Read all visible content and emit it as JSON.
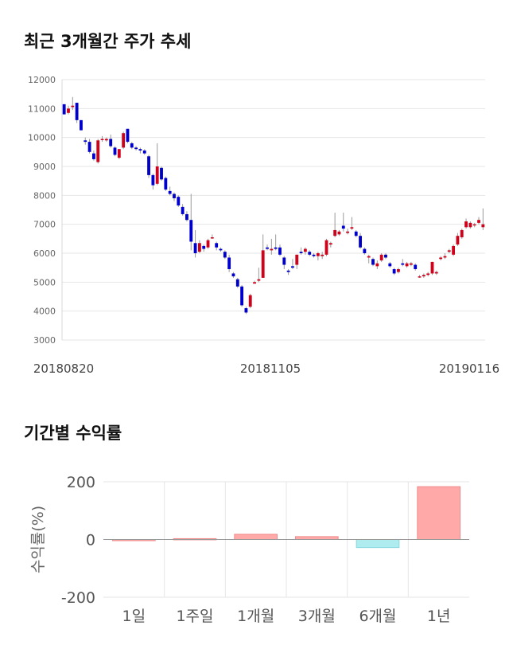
{
  "sections": {
    "price_title": "최근 3개월간 주가 추세",
    "returns_title": "기간별 수익률"
  },
  "chart_data": [
    {
      "type": "candlestick",
      "ylim": [
        3000,
        12000
      ],
      "yticks": [
        "12000",
        "11000",
        "10000",
        "9000",
        "8000",
        "7000",
        "6000",
        "5000",
        "4000",
        "3000"
      ],
      "xticks": [
        "20180820",
        "20181105",
        "20190116"
      ],
      "grid": true,
      "colors": {
        "up": "#d0021b",
        "down": "#0000cc"
      },
      "ohlc": [
        [
          11150,
          11150,
          10800,
          10800
        ],
        [
          10850,
          11100,
          10800,
          11000
        ],
        [
          11050,
          11400,
          10950,
          11100
        ],
        [
          11200,
          11200,
          10500,
          10600
        ],
        [
          10600,
          10600,
          10250,
          10250
        ],
        [
          9900,
          10000,
          9750,
          9850
        ],
        [
          9850,
          9950,
          9450,
          9500
        ],
        [
          9450,
          9550,
          9200,
          9250
        ],
        [
          9150,
          9950,
          9100,
          9900
        ],
        [
          9950,
          10050,
          9850,
          9950
        ],
        [
          9900,
          10000,
          9850,
          9950
        ],
        [
          9950,
          10100,
          9650,
          9700
        ],
        [
          9650,
          9700,
          9350,
          9400
        ],
        [
          9300,
          9600,
          9250,
          9600
        ],
        [
          9650,
          10200,
          9600,
          10150
        ],
        [
          10300,
          10300,
          9800,
          9850
        ],
        [
          9800,
          9850,
          9600,
          9650
        ],
        [
          9650,
          9700,
          9550,
          9600
        ],
        [
          9600,
          9650,
          9450,
          9550
        ],
        [
          9550,
          9600,
          9400,
          9450
        ],
        [
          9350,
          9400,
          8600,
          8700
        ],
        [
          8700,
          8750,
          8200,
          8350
        ],
        [
          8400,
          9800,
          8350,
          9000
        ],
        [
          8950,
          9000,
          8500,
          8550
        ],
        [
          8600,
          8650,
          8150,
          8200
        ],
        [
          8150,
          8300,
          8000,
          8050
        ],
        [
          8050,
          8100,
          7800,
          7900
        ],
        [
          7950,
          8000,
          7600,
          7650
        ],
        [
          7600,
          7700,
          7300,
          7350
        ],
        [
          7350,
          7450,
          7100,
          7150
        ],
        [
          7150,
          8050,
          6100,
          6400
        ],
        [
          6350,
          6800,
          5850,
          6000
        ],
        [
          6050,
          6450,
          6000,
          6350
        ],
        [
          6250,
          6300,
          6050,
          6150
        ],
        [
          6200,
          6500,
          6150,
          6450
        ],
        [
          6550,
          6650,
          6500,
          6550
        ],
        [
          6350,
          6400,
          6100,
          6200
        ],
        [
          6150,
          6200,
          6050,
          6100
        ],
        [
          6050,
          6100,
          5800,
          5850
        ],
        [
          5850,
          5950,
          5350,
          5450
        ],
        [
          5300,
          5350,
          5150,
          5200
        ],
        [
          5100,
          5150,
          4800,
          4850
        ],
        [
          4850,
          4900,
          4150,
          4200
        ],
        [
          4100,
          4150,
          3900,
          3950
        ],
        [
          4150,
          4600,
          4100,
          4550
        ],
        [
          4950,
          5050,
          4950,
          5000
        ],
        [
          5050,
          5500,
          5000,
          5100
        ],
        [
          5150,
          6650,
          5150,
          6100
        ],
        [
          6200,
          6300,
          6100,
          6150
        ],
        [
          6100,
          6500,
          5950,
          6150
        ],
        [
          6200,
          6650,
          6100,
          6150
        ],
        [
          6200,
          6300,
          5900,
          5950
        ],
        [
          5850,
          5900,
          5450,
          5600
        ],
        [
          5400,
          5450,
          5250,
          5350
        ],
        [
          5550,
          5800,
          5450,
          5500
        ],
        [
          5600,
          5950,
          5450,
          5950
        ],
        [
          6050,
          6200,
          5950,
          6000
        ],
        [
          6050,
          6200,
          5950,
          6150
        ],
        [
          6050,
          6100,
          5900,
          5950
        ],
        [
          5950,
          6000,
          5850,
          5900
        ],
        [
          5900,
          6050,
          5750,
          6000
        ],
        [
          5900,
          6050,
          5800,
          5950
        ],
        [
          5950,
          6500,
          5900,
          6450
        ],
        [
          6300,
          6400,
          6200,
          6350
        ],
        [
          6600,
          7400,
          6550,
          6800
        ],
        [
          6650,
          6800,
          6600,
          6750
        ],
        [
          6950,
          7400,
          6750,
          6850
        ],
        [
          6700,
          6850,
          6650,
          6750
        ],
        [
          6850,
          7250,
          6800,
          6900
        ],
        [
          6750,
          6800,
          6550,
          6600
        ],
        [
          6600,
          6700,
          6150,
          6200
        ],
        [
          6150,
          6200,
          5950,
          6000
        ],
        [
          5850,
          5950,
          5650,
          5900
        ],
        [
          5800,
          5850,
          5550,
          5600
        ],
        [
          5550,
          5750,
          5450,
          5650
        ],
        [
          5750,
          6000,
          5700,
          5950
        ],
        [
          5950,
          6000,
          5800,
          5850
        ],
        [
          5650,
          5700,
          5500,
          5550
        ],
        [
          5450,
          5500,
          5250,
          5300
        ],
        [
          5350,
          5500,
          5300,
          5450
        ],
        [
          5650,
          5800,
          5550,
          5600
        ],
        [
          5550,
          5700,
          5500,
          5650
        ],
        [
          5600,
          5700,
          5550,
          5650
        ],
        [
          5600,
          5650,
          5400,
          5450
        ],
        [
          5200,
          5250,
          5150,
          5200
        ],
        [
          5200,
          5300,
          5150,
          5250
        ],
        [
          5250,
          5350,
          5200,
          5300
        ],
        [
          5300,
          5700,
          5250,
          5700
        ],
        [
          5300,
          5400,
          5250,
          5350
        ],
        [
          5800,
          5900,
          5750,
          5850
        ],
        [
          5850,
          6000,
          5800,
          5900
        ],
        [
          6050,
          6150,
          6000,
          6100
        ],
        [
          5950,
          6300,
          5900,
          6250
        ],
        [
          6300,
          6700,
          6250,
          6600
        ],
        [
          6550,
          6850,
          6500,
          6800
        ],
        [
          6900,
          7200,
          6850,
          7100
        ],
        [
          6900,
          7100,
          6850,
          7050
        ],
        [
          7000,
          7050,
          6900,
          7000
        ],
        [
          7050,
          7250,
          7000,
          7150
        ],
        [
          6900,
          7550,
          6800,
          7000
        ]
      ]
    },
    {
      "type": "bar",
      "ylabel": "수익률(%)",
      "ylim": [
        -200,
        200
      ],
      "yticks": [
        "200",
        "0",
        "-200"
      ],
      "categories": [
        "1일",
        "1주일",
        "1개월",
        "3개월",
        "6개월",
        "1년"
      ],
      "values": [
        0,
        3,
        18,
        10,
        -28,
        183
      ],
      "colors": {
        "positive": "#ffa9a9",
        "negative": "#aeecf0"
      }
    }
  ]
}
